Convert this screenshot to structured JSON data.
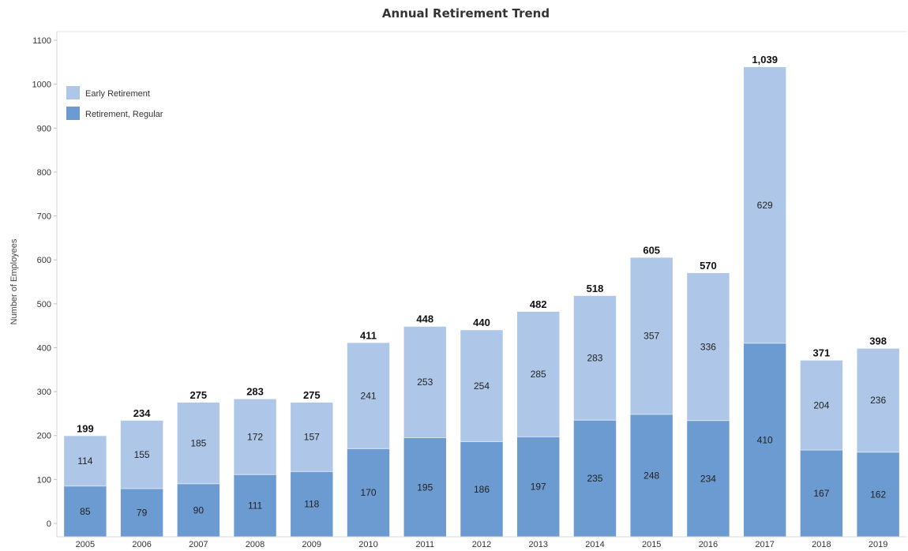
{
  "chart_data": {
    "type": "bar",
    "stacked": true,
    "title": "Annual Retirement Trend",
    "xlabel": "",
    "ylabel": "Number of Employees",
    "ylim": [
      0,
      1100
    ],
    "yticks": [
      0,
      100,
      200,
      300,
      400,
      500,
      600,
      700,
      800,
      900,
      1000,
      1100
    ],
    "grid": false,
    "legend_position": "top-left",
    "categories": [
      "2005",
      "2006",
      "2007",
      "2008",
      "2009",
      "2010",
      "2011",
      "2012",
      "2013",
      "2014",
      "2015",
      "2016",
      "2017",
      "2018",
      "2019"
    ],
    "series": [
      {
        "name": "Retirement, Regular",
        "color": "#6b9bd0",
        "values": [
          85,
          79,
          90,
          111,
          118,
          170,
          195,
          186,
          197,
          235,
          248,
          234,
          410,
          167,
          162
        ]
      },
      {
        "name": "Early Retirement",
        "color": "#aec7e8",
        "values": [
          114,
          155,
          185,
          172,
          157,
          241,
          253,
          254,
          285,
          283,
          357,
          336,
          629,
          204,
          236
        ]
      }
    ],
    "totals": [
      "199",
      "234",
      "275",
      "283",
      "275",
      "411",
      "448",
      "440",
      "482",
      "518",
      "605",
      "570",
      "1,039",
      "371",
      "398"
    ],
    "legend_order": [
      "Early Retirement",
      "Retirement, Regular"
    ]
  }
}
